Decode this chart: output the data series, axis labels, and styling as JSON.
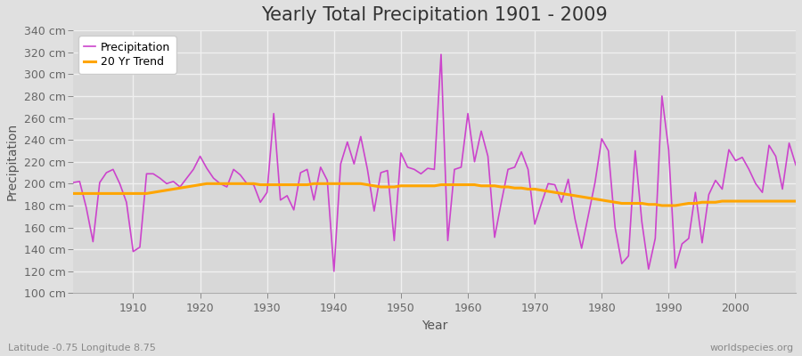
{
  "title": "Yearly Total Precipitation 1901 - 2009",
  "xlabel": "Year",
  "ylabel": "Precipitation",
  "subtitle": "Latitude -0.75 Longitude 8.75",
  "watermark": "worldspecies.org",
  "years": [
    1901,
    1902,
    1903,
    1904,
    1905,
    1906,
    1907,
    1908,
    1909,
    1910,
    1911,
    1912,
    1913,
    1914,
    1915,
    1916,
    1917,
    1918,
    1919,
    1920,
    1921,
    1922,
    1923,
    1924,
    1925,
    1926,
    1927,
    1928,
    1929,
    1930,
    1931,
    1932,
    1933,
    1934,
    1935,
    1936,
    1937,
    1938,
    1939,
    1940,
    1941,
    1942,
    1943,
    1944,
    1945,
    1946,
    1947,
    1948,
    1949,
    1950,
    1951,
    1952,
    1953,
    1954,
    1955,
    1956,
    1957,
    1958,
    1959,
    1960,
    1961,
    1962,
    1963,
    1964,
    1965,
    1966,
    1967,
    1968,
    1969,
    1970,
    1971,
    1972,
    1973,
    1974,
    1975,
    1976,
    1977,
    1978,
    1979,
    1980,
    1981,
    1982,
    1983,
    1984,
    1985,
    1986,
    1987,
    1988,
    1989,
    1990,
    1991,
    1992,
    1993,
    1994,
    1995,
    1996,
    1997,
    1998,
    1999,
    2000,
    2001,
    2002,
    2003,
    2004,
    2005,
    2006,
    2007,
    2008,
    2009
  ],
  "precipitation": [
    201,
    202,
    178,
    147,
    201,
    210,
    213,
    200,
    183,
    138,
    142,
    209,
    209,
    205,
    200,
    202,
    197,
    205,
    213,
    225,
    214,
    205,
    200,
    197,
    213,
    208,
    200,
    199,
    183,
    192,
    264,
    185,
    189,
    176,
    210,
    213,
    185,
    215,
    203,
    120,
    218,
    238,
    218,
    243,
    213,
    175,
    210,
    212,
    148,
    228,
    215,
    213,
    209,
    214,
    213,
    318,
    148,
    213,
    215,
    264,
    220,
    248,
    225,
    151,
    183,
    213,
    215,
    229,
    213,
    163,
    182,
    200,
    199,
    183,
    204,
    168,
    141,
    171,
    201,
    241,
    230,
    160,
    127,
    134,
    230,
    165,
    122,
    150,
    280,
    231,
    123,
    145,
    150,
    192,
    146,
    190,
    203,
    195,
    231,
    221,
    224,
    213,
    200,
    192,
    235,
    225,
    195,
    237,
    217
  ],
  "trend": [
    191,
    191,
    191,
    191,
    191,
    191,
    191,
    191,
    191,
    191,
    191,
    191,
    192,
    193,
    194,
    195,
    196,
    197,
    198,
    199,
    200,
    200,
    200,
    200,
    200,
    200,
    200,
    200,
    199,
    199,
    199,
    199,
    199,
    199,
    199,
    199,
    200,
    200,
    200,
    200,
    200,
    200,
    200,
    200,
    199,
    198,
    197,
    197,
    197,
    198,
    198,
    198,
    198,
    198,
    198,
    199,
    199,
    199,
    199,
    199,
    199,
    198,
    198,
    198,
    197,
    197,
    196,
    196,
    195,
    195,
    194,
    193,
    192,
    191,
    190,
    189,
    188,
    187,
    186,
    185,
    184,
    183,
    182,
    182,
    182,
    182,
    181,
    181,
    180,
    180,
    180,
    181,
    182,
    182,
    183,
    183,
    183,
    184,
    184,
    184,
    184,
    184,
    184,
    184,
    184,
    184,
    184,
    184,
    184
  ],
  "precip_color": "#CC44CC",
  "trend_color": "#FFA500",
  "bg_color": "#E0E0E0",
  "plot_bg_color": "#D8D8D8",
  "grid_color": "#F0F0F0",
  "ylim": [
    100,
    340
  ],
  "yticks": [
    100,
    120,
    140,
    160,
    180,
    200,
    220,
    240,
    260,
    280,
    300,
    320,
    340
  ],
  "xticks": [
    1910,
    1920,
    1930,
    1940,
    1950,
    1960,
    1970,
    1980,
    1990,
    2000
  ],
  "title_fontsize": 15,
  "axis_fontsize": 10,
  "tick_fontsize": 9,
  "legend_fontsize": 9,
  "figsize": [
    9.0,
    4.0
  ],
  "dpi": 100
}
